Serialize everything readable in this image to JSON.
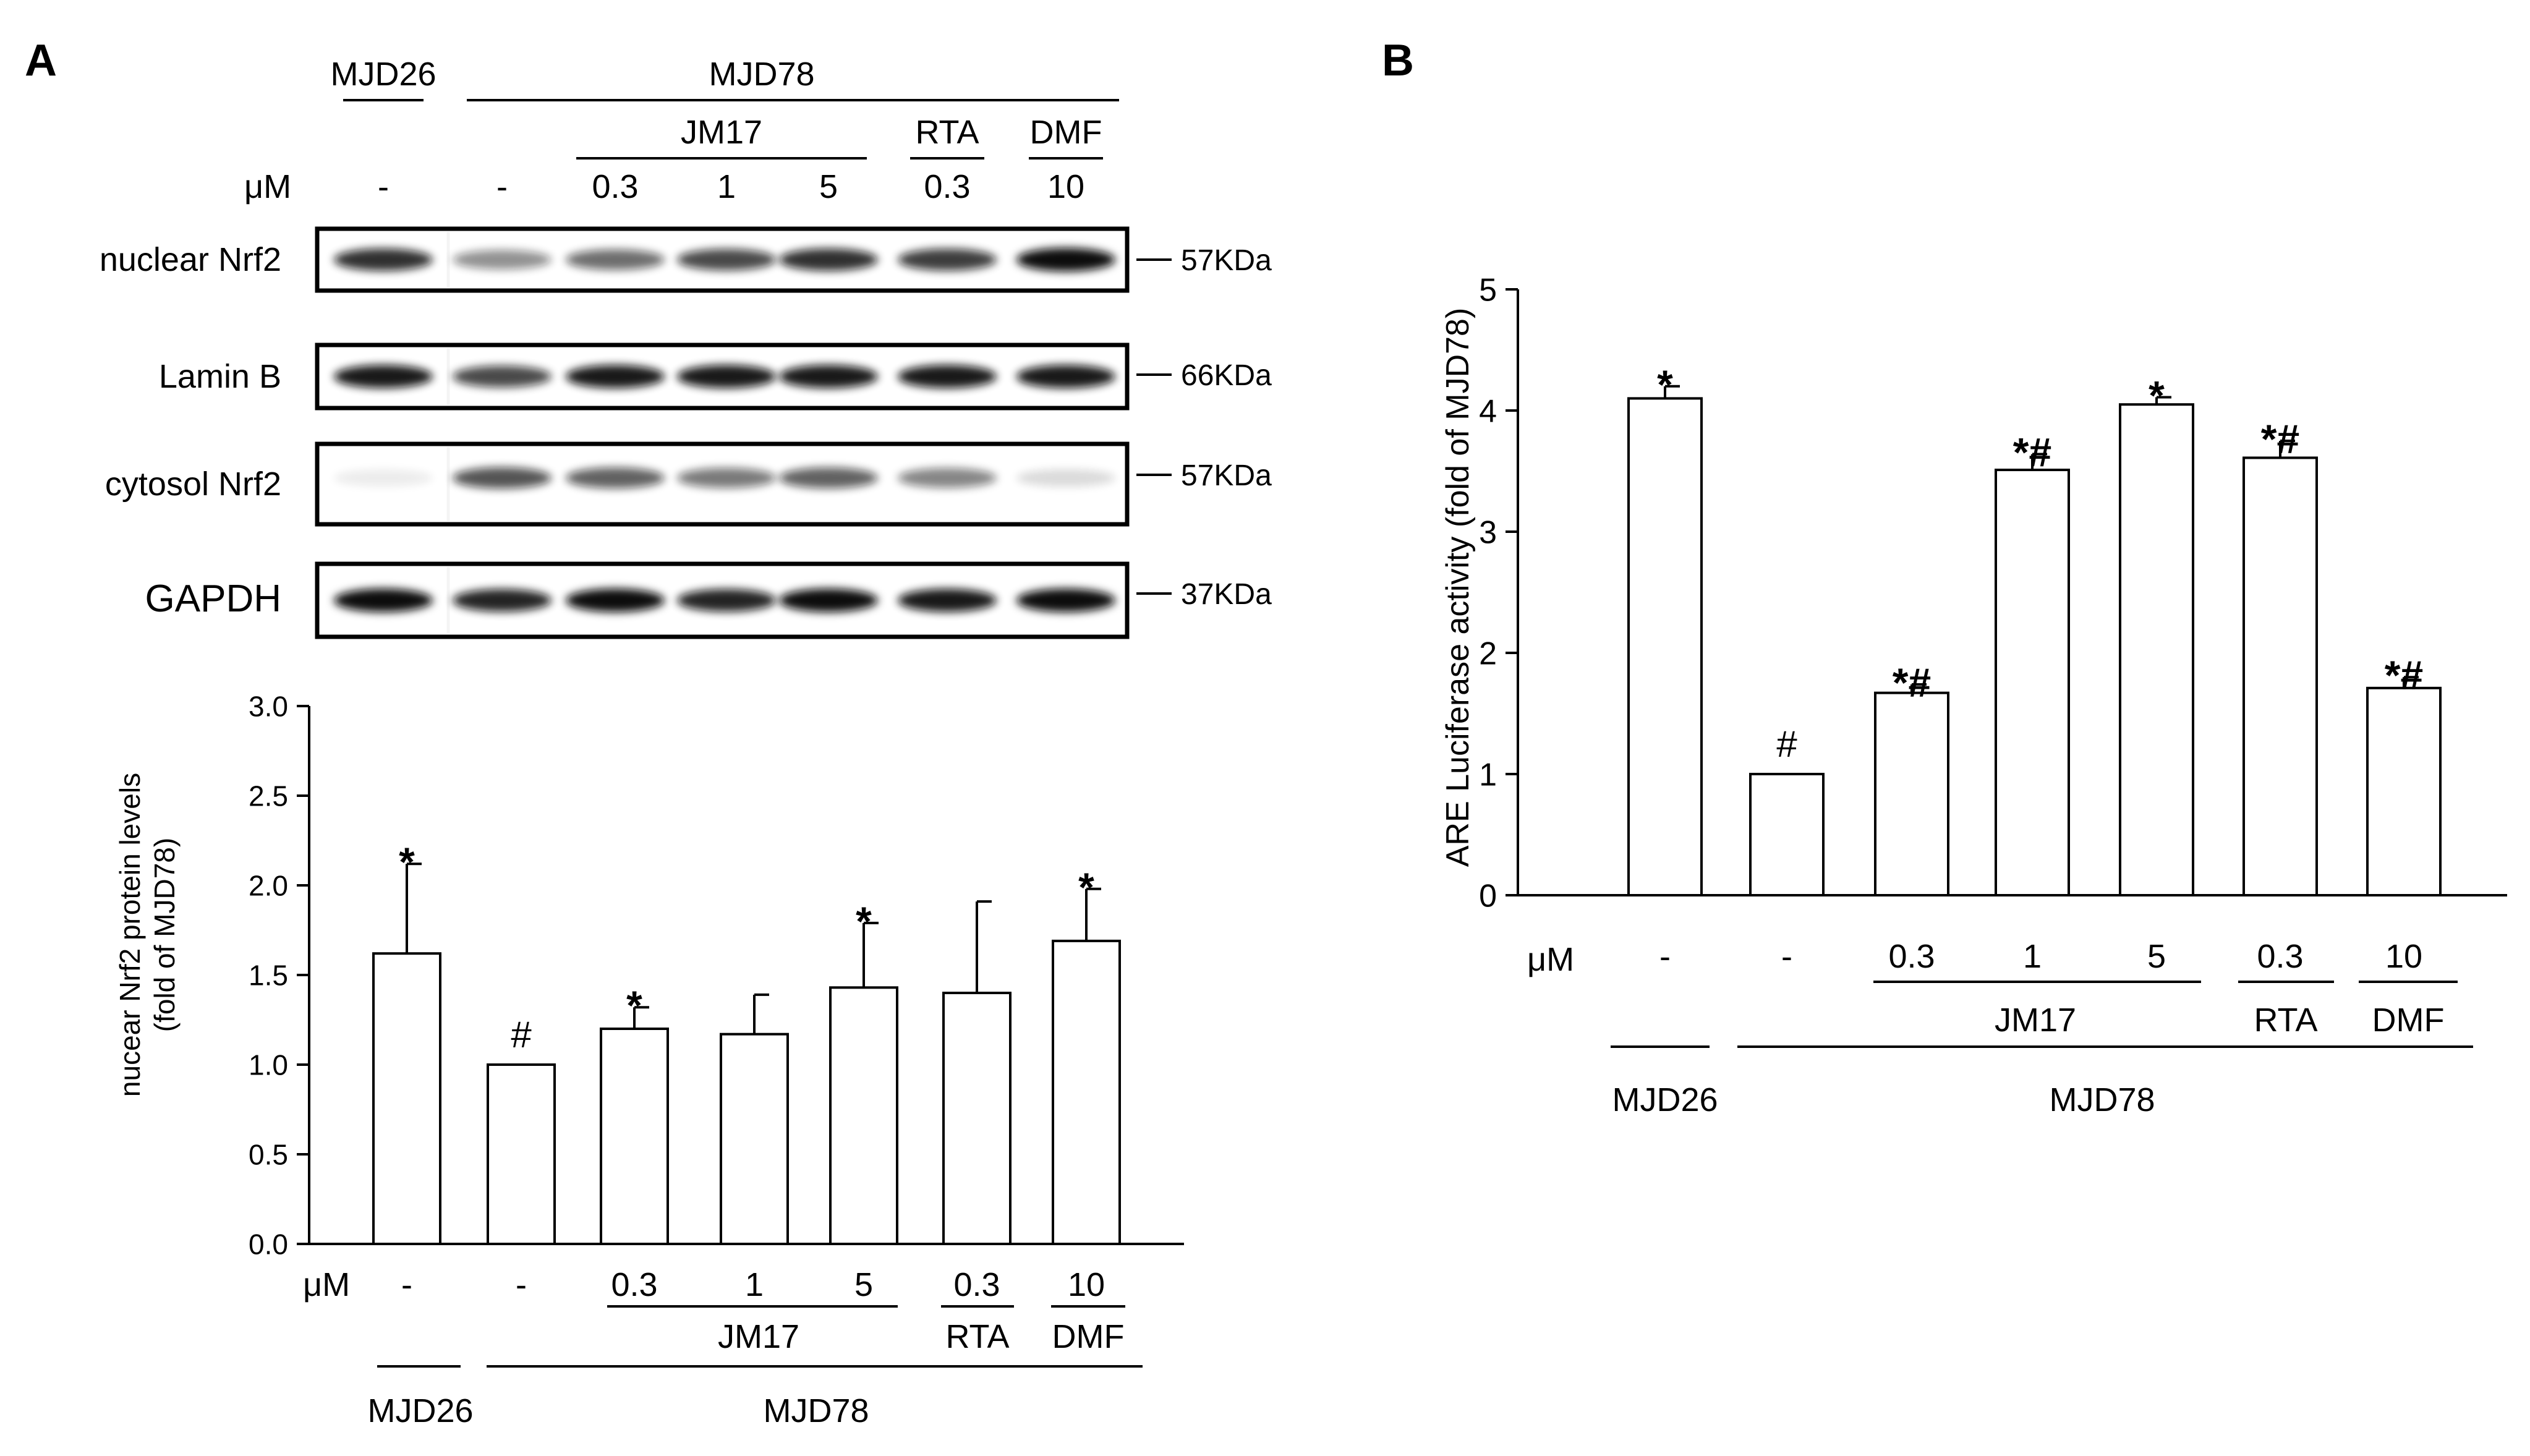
{
  "panel_a": {
    "letter": "A",
    "blot": {
      "group_labels": {
        "mjd26": "MJD26",
        "mjd78": "MJD78"
      },
      "sub_groups": {
        "jm17": "JM17",
        "rta": "RTA",
        "dmf": "DMF"
      },
      "conc_label": "μM",
      "lane_concentrations": [
        "-",
        "-",
        "0.3",
        "1",
        "5",
        "0.3",
        "10"
      ],
      "rows": [
        {
          "name": "nuclear Nrf2",
          "mw": "57KDa",
          "band_intensity": [
            0.85,
            0.45,
            0.6,
            0.75,
            0.85,
            0.8,
            1.0
          ]
        },
        {
          "name": "Lamin B",
          "mw": "66KDa",
          "band_intensity": [
            0.95,
            0.75,
            0.95,
            0.95,
            0.95,
            0.95,
            0.95
          ]
        },
        {
          "name": "cytosol Nrf2",
          "mw": "57KDa",
          "band_intensity": [
            0.08,
            0.7,
            0.65,
            0.55,
            0.65,
            0.5,
            0.15
          ]
        },
        {
          "name": "GAPDH",
          "mw": "37KDa",
          "band_intensity": [
            1.0,
            0.9,
            1.0,
            0.9,
            1.0,
            0.95,
            1.0
          ]
        }
      ]
    }
  },
  "panel_b": {
    "letter": "B"
  },
  "chart_data": [
    {
      "type": "bar",
      "panel": "A",
      "ylabel": [
        "nucear Nrf2 protein levels",
        "(fold of MJD78)"
      ],
      "ylim": [
        0,
        3.0
      ],
      "yticks": [
        "0.0",
        "0.5",
        "1.0",
        "1.5",
        "2.0",
        "2.5",
        "3.0"
      ],
      "categories": [
        "-",
        "-",
        "0.3",
        "1",
        "5",
        "0.3",
        "10"
      ],
      "values": [
        1.62,
        1.0,
        1.2,
        1.17,
        1.43,
        1.4,
        1.69
      ],
      "errors": [
        0.5,
        0,
        0.12,
        0.22,
        0.36,
        0.51,
        0.29
      ],
      "annotations": [
        "*",
        "#",
        "*",
        "",
        "*",
        "",
        "*"
      ],
      "conc_label": "μM",
      "group_labels": {
        "mjd26": "MJD26",
        "mjd78": "MJD78",
        "jm17": "JM17",
        "rta": "RTA",
        "dmf": "DMF"
      }
    },
    {
      "type": "bar",
      "panel": "B",
      "ylabel": [
        "ARE Luciferase activity (fold of MJD78)"
      ],
      "ylim": [
        0,
        5
      ],
      "yticks": [
        "0",
        "1",
        "2",
        "3",
        "4",
        "5"
      ],
      "categories": [
        "-",
        "-",
        "0.3",
        "1",
        "5",
        "0.3",
        "10"
      ],
      "values": [
        4.1,
        1.0,
        1.67,
        3.51,
        4.05,
        3.61,
        1.71
      ],
      "errors": [
        0.1,
        0,
        0.07,
        0.13,
        0.06,
        0.14,
        0.09
      ],
      "annotations": [
        "*",
        "#",
        "*#",
        "*#",
        "*",
        "*#",
        "*#"
      ],
      "conc_label": "μM",
      "group_labels": {
        "mjd26": "MJD26",
        "mjd78": "MJD78",
        "jm17": "JM17",
        "rta": "RTA",
        "dmf": "DMF"
      }
    }
  ]
}
